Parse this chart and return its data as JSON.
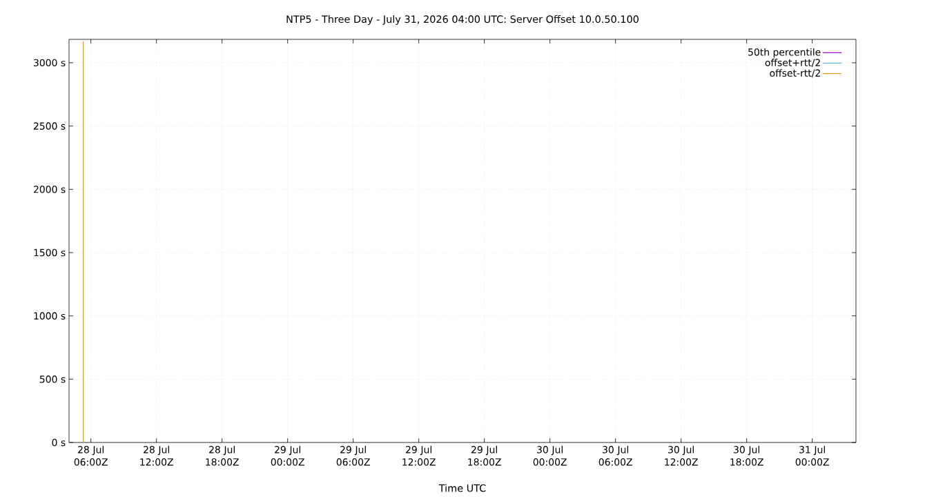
{
  "chart_data": {
    "type": "line",
    "title": "NTP5 - Three Day - July 31, 2026 04:00 UTC: Server Offset 10.0.50.100",
    "xlabel": "Time UTC",
    "series": [
      {
        "name": "50th percentile",
        "color": "#9400d3",
        "values": [
          null
        ]
      },
      {
        "color": "#009e73",
        "values": [
          null
        ]
      },
      {
        "name": "offset+rtt/2",
        "color": "#56b4e9",
        "values": [
          null
        ]
      },
      {
        "name": "offset-rtt/2",
        "color": "#e69f00",
        "x": [
          "2026-07-28T05:18",
          "2026-07-28T05:18"
        ],
        "values": [
          3170,
          0
        ]
      }
    ],
    "xlim": [
      "2026-07-28T04:00",
      "2026-07-31T04:00"
    ],
    "ylim": [
      0,
      3185
    ],
    "xticks": [
      {
        "value": "2026-07-28T06:00",
        "label": "28 Jul 06:00Z"
      },
      {
        "value": "2026-07-28T12:00",
        "label": "28 Jul 12:00Z"
      },
      {
        "value": "2026-07-28T18:00",
        "label": "28 Jul 18:00Z"
      },
      {
        "value": "2026-07-29T00:00",
        "label": "29 Jul 00:00Z"
      },
      {
        "value": "2026-07-29T06:00",
        "label": "29 Jul 06:00Z"
      },
      {
        "value": "2026-07-29T12:00",
        "label": "29 Jul 12:00Z"
      },
      {
        "value": "2026-07-29T18:00",
        "label": "29 Jul 18:00Z"
      },
      {
        "value": "2026-07-30T00:00",
        "label": "30 Jul 00:00Z"
      },
      {
        "value": "2026-07-30T06:00",
        "label": "30 Jul 06:00Z"
      },
      {
        "value": "2026-07-30T12:00",
        "label": "30 Jul 12:00Z"
      },
      {
        "value": "2026-07-30T18:00",
        "label": "30 Jul 18:00Z"
      },
      {
        "value": "2026-07-31T00:00",
        "label": "31 Jul 00:00Z"
      }
    ],
    "yticks": [
      {
        "value": 0,
        "label": "0 s"
      },
      {
        "value": 500,
        "label": "500 s"
      },
      {
        "value": 1000,
        "label": "1000 s"
      },
      {
        "value": 1500,
        "label": "1500 s"
      },
      {
        "value": 2000,
        "label": "2000 s"
      },
      {
        "value": 2500,
        "label": "2500 s"
      },
      {
        "value": 3000,
        "label": "3000 s"
      }
    ],
    "grid": true,
    "legend": "top right",
    "line_style": "solid",
    "marker": "none"
  }
}
